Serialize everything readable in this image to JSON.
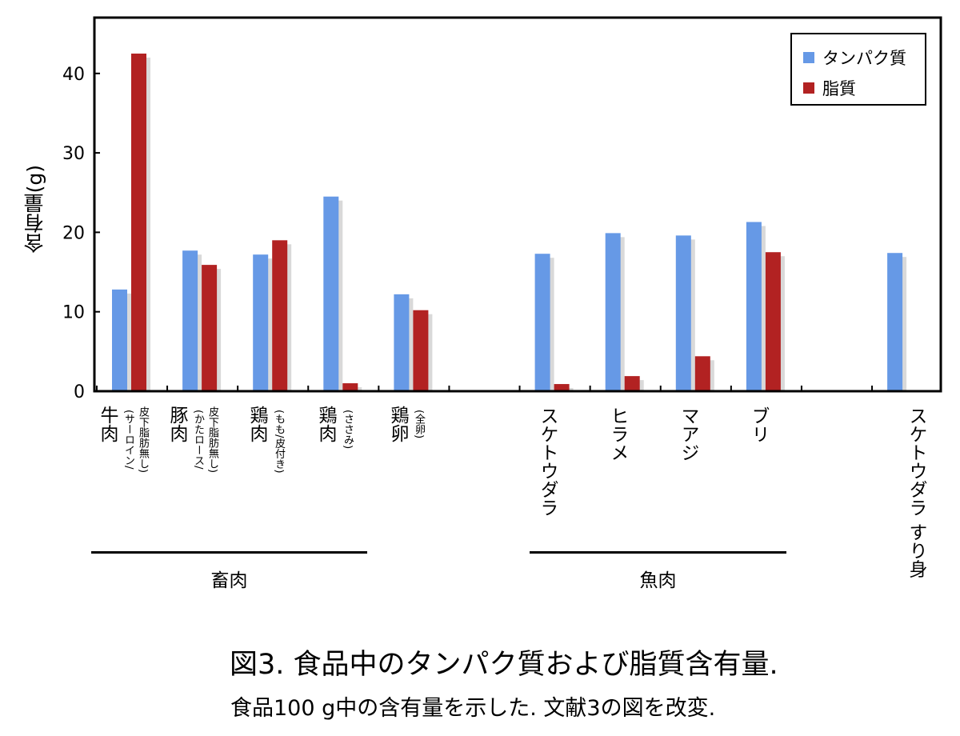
{
  "chart_data": {
    "type": "bar",
    "ylabel": "含有量(g)",
    "ylim": [
      0,
      47
    ],
    "yticks": [
      "0",
      "10",
      "20",
      "30",
      "40"
    ],
    "categories": [
      {
        "main": "牛肉",
        "sub": [
          "(サーロイン/",
          "皮下脂肪無し)"
        ]
      },
      {
        "main": "豚肉",
        "sub": [
          "(かたロース/",
          "皮下脂肪無し)"
        ]
      },
      {
        "main": "鶏肉",
        "sub": [
          "(もも/皮付き)"
        ]
      },
      {
        "main": "鶏肉",
        "sub": [
          "(ささみ)"
        ]
      },
      {
        "main": "鶏卵",
        "sub": [
          "(全卵)"
        ]
      },
      {
        "main": "",
        "sub": []
      },
      {
        "main": "スケトウダラ",
        "sub": []
      },
      {
        "main": "ヒラメ",
        "sub": []
      },
      {
        "main": "マアジ",
        "sub": []
      },
      {
        "main": "ブリ",
        "sub": []
      },
      {
        "main": "",
        "sub": []
      },
      {
        "main": "スケトウダラ すり身",
        "sub": []
      }
    ],
    "series": [
      {
        "name": "タンパク質",
        "color": "#6699e6",
        "values": [
          12.8,
          17.7,
          17.2,
          24.5,
          12.2,
          null,
          17.3,
          19.9,
          19.6,
          21.3,
          null,
          17.4
        ]
      },
      {
        "name": "脂質",
        "color": "#b22222",
        "values": [
          42.5,
          15.9,
          19.0,
          1.0,
          10.2,
          null,
          0.9,
          1.9,
          4.4,
          17.5,
          null,
          null
        ]
      }
    ],
    "groups": [
      {
        "label": "畜肉"
      },
      {
        "label": "魚肉"
      }
    ],
    "legend_position": "top-right"
  },
  "caption": {
    "title": "図3. 食品中のタンパク質および脂質含有量.",
    "note": "食品100 g中の含有量を示した. 文献3の図を改変."
  }
}
